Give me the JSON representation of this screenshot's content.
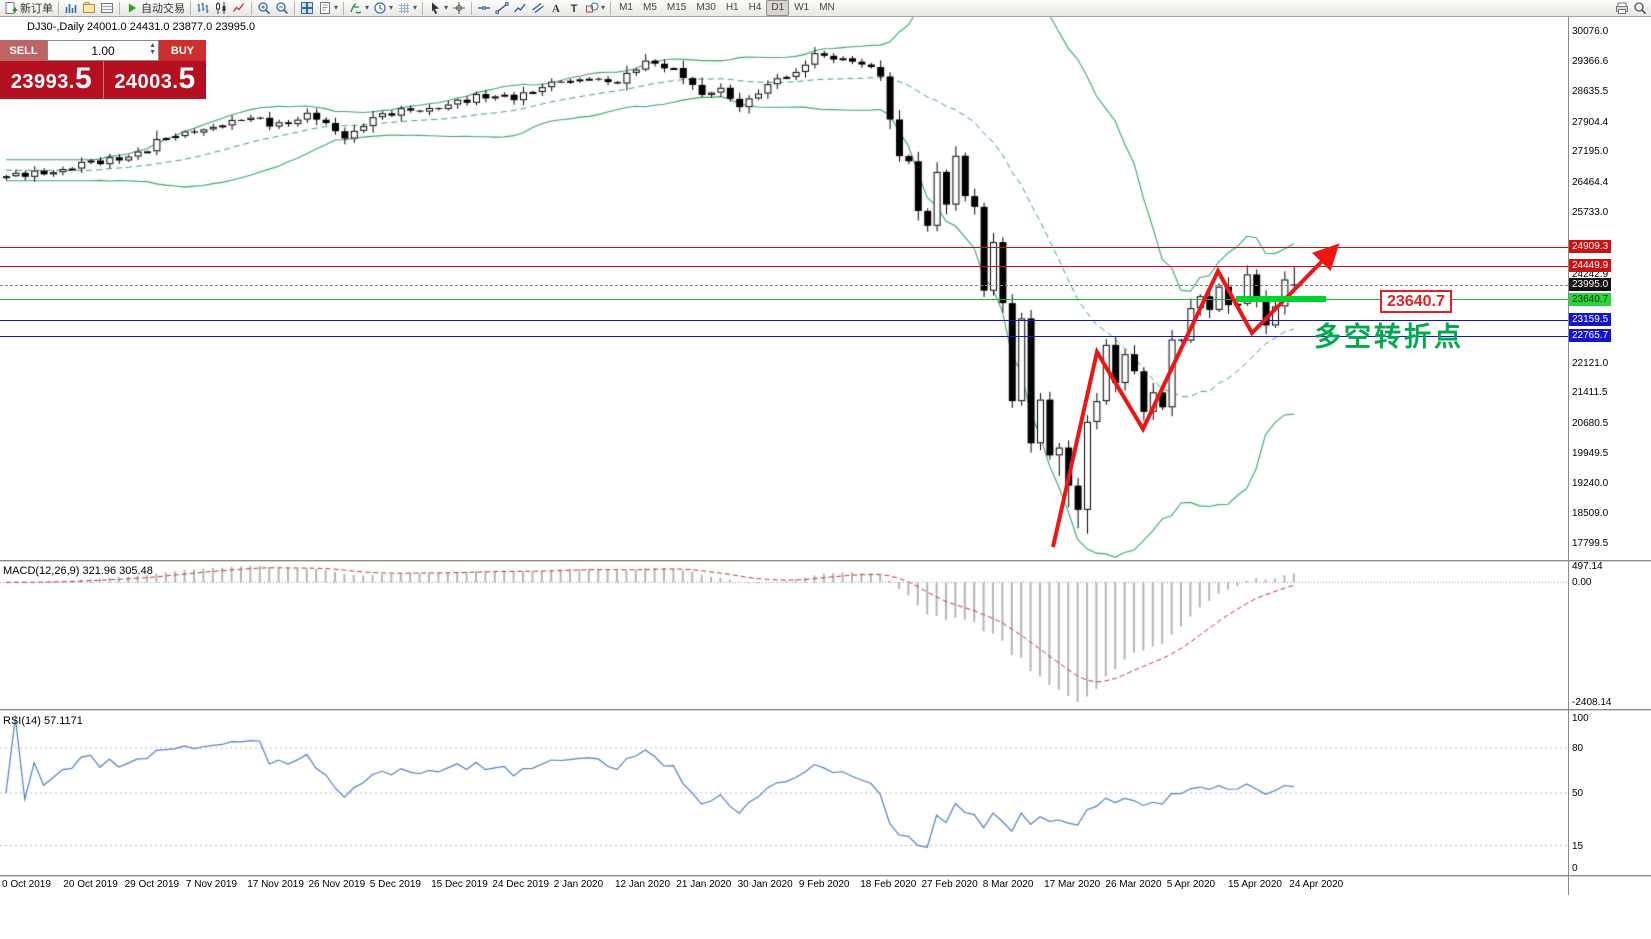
{
  "toolbar": {
    "groups": [
      {
        "items": [
          {
            "icon": "new-order",
            "label": "新订单"
          }
        ]
      },
      {
        "items": [
          {
            "icon": "market-watch"
          },
          {
            "icon": "navigator"
          },
          {
            "icon": "terminal"
          }
        ]
      },
      {
        "items": [
          {
            "icon": "autotrading",
            "label": "自动交易"
          }
        ]
      },
      {
        "items": [
          {
            "icon": "bars-chart"
          },
          {
            "icon": "candles-chart"
          },
          {
            "icon": "line-chart"
          }
        ]
      },
      {
        "items": [
          {
            "icon": "zoom-in"
          },
          {
            "icon": "zoom-out"
          }
        ]
      },
      {
        "items": [
          {
            "icon": "tile-windows"
          },
          {
            "icon": "templates",
            "dropdown": true
          }
        ]
      },
      {
        "items": [
          {
            "icon": "indicators",
            "dropdown": true
          },
          {
            "icon": "periods",
            "dropdown": true
          },
          {
            "icon": "grid",
            "dropdown": true
          }
        ]
      },
      {
        "items": [
          {
            "icon": "cursor",
            "dropdown": true
          },
          {
            "icon": "crosshair"
          }
        ]
      },
      {
        "items": [
          {
            "icon": "hline"
          },
          {
            "icon": "trendline"
          },
          {
            "icon": "polyline"
          },
          {
            "icon": "channel"
          },
          {
            "icon": "text"
          },
          {
            "icon": "label"
          },
          {
            "icon": "shapes",
            "dropdown": true
          }
        ]
      },
      {
        "items": [
          {
            "tf": "M1"
          },
          {
            "tf": "M5"
          },
          {
            "tf": "M15"
          },
          {
            "tf": "M30"
          },
          {
            "tf": "H1"
          },
          {
            "tf": "H4"
          },
          {
            "tf": "D1",
            "active": true
          },
          {
            "tf": "W1"
          },
          {
            "tf": "MN"
          }
        ]
      }
    ],
    "right_icons": [
      "print",
      "search"
    ]
  },
  "chart": {
    "ohlc_title": "DJ30-,Daily 24001.0 24431.0 23877.0 23995.0"
  },
  "trade_panel": {
    "sell_label": "SELL",
    "buy_label": "BUY",
    "volume": "1.00",
    "sell_price_main": "23993.",
    "sell_price_big": "5",
    "buy_price_main": "24003.",
    "buy_price_big": "5"
  },
  "price_axis": {
    "plain_labels": [
      "30076.0",
      "29366.6",
      "28635.5",
      "27904.4",
      "27195.0",
      "26464.4",
      "25733.0",
      "24242.9",
      "22121.0",
      "21411.5",
      "20680.5",
      "19949.5",
      "19240.0",
      "18509.0",
      "17799.5"
    ],
    "tags": [
      {
        "text": "24909.3",
        "price": 24909.3,
        "bg": "#cc1111",
        "fg": "#ffffff"
      },
      {
        "text": "24449.9",
        "price": 24449.9,
        "bg": "#cc1111",
        "fg": "#ffffff"
      },
      {
        "text": "23995.0",
        "price": 23995.0,
        "bg": "#111111",
        "fg": "#ffffff"
      },
      {
        "text": "23640.7",
        "price": 23640.7,
        "bg": "#2fd13d",
        "fg": "#063b06"
      },
      {
        "text": "23159.5",
        "price": 23159.5,
        "bg": "#1414c8",
        "fg": "#ffffff"
      },
      {
        "text": "22765.7",
        "price": 22765.7,
        "bg": "#1414c8",
        "fg": "#ffffff"
      }
    ]
  },
  "levels": [
    {
      "price": 24909.3,
      "color": "#cc1111",
      "style": "solid"
    },
    {
      "price": 24449.9,
      "color": "#cc1111",
      "style": "solid"
    },
    {
      "price": 23995.0,
      "color": "#808080",
      "style": "dashed"
    },
    {
      "price": 23640.7,
      "color": "#19b52f",
      "style": "solid"
    },
    {
      "price": 23159.5,
      "color": "#1414c8",
      "style": "solid"
    },
    {
      "price": 22765.7,
      "color": "#1414c8",
      "style": "solid"
    }
  ],
  "annotations": {
    "price_label": "23640.7",
    "turning_point": "多空转折点"
  },
  "macd": {
    "label": "MACD(12,26,9) 321.96 305.48",
    "axis_labels": [
      "497.14",
      "0.00",
      "-2408.14"
    ]
  },
  "rsi": {
    "label": "RSI(14) 57.1171",
    "axis_labels": [
      "100",
      "80",
      "50",
      "15",
      "0"
    ],
    "axis_values": [
      100,
      80,
      50,
      15,
      0
    ],
    "levels": [
      80,
      50,
      15
    ]
  },
  "time_axis": {
    "labels": [
      "0 Oct 2019",
      "20 Oct 2019",
      "29 Oct 2019",
      "7 Nov 2019",
      "17 Nov 2019",
      "26 Nov 2019",
      "5 Dec 2019",
      "15 Dec 2019",
      "24 Dec 2019",
      "2 Jan 2020",
      "12 Jan 2020",
      "21 Jan 2020",
      "30 Jan 2020",
      "9 Feb 2020",
      "18 Feb 2020",
      "27 Feb 2020",
      "8 Mar 2020",
      "17 Mar 2020",
      "26 Mar 2020",
      "5 Apr 2020",
      "15 Apr 2020",
      "24 Apr 2020"
    ]
  },
  "chart_data": [
    {
      "type": "candlestick",
      "symbol": "DJ30-",
      "period": "Daily",
      "current_ohlc": {
        "open": 24001.0,
        "high": 24431.0,
        "low": 23877.0,
        "close": 23995.0
      },
      "y_axis_visible_range": [
        17799.5,
        30076.0
      ],
      "x_axis_visible_range": [
        "0 Oct 2019",
        "24 Apr 2020"
      ],
      "indicators": [
        {
          "name": "Bollinger Bands",
          "period": 20,
          "deviation": 2
        }
      ],
      "horizontal_levels": [
        24909.3,
        24449.9,
        23995.0,
        23640.7,
        23159.5,
        22765.7
      ],
      "close_keypoints": [
        [
          0,
          26600
        ],
        [
          6,
          26770
        ],
        [
          13,
          27071
        ],
        [
          19,
          27674
        ],
        [
          23,
          27820
        ],
        [
          26,
          28005
        ],
        [
          30,
          27850
        ],
        [
          32,
          28121
        ],
        [
          36,
          27502
        ],
        [
          39,
          28015
        ],
        [
          45,
          28235
        ],
        [
          52,
          28515
        ],
        [
          56,
          28621
        ],
        [
          58,
          28868
        ],
        [
          62,
          28939
        ],
        [
          65,
          28823
        ],
        [
          68,
          29373
        ],
        [
          71,
          29196
        ],
        [
          74,
          28550
        ],
        [
          76,
          28722
        ],
        [
          78,
          28256
        ],
        [
          81,
          28807
        ],
        [
          84,
          29102
        ],
        [
          86,
          29551
        ],
        [
          88,
          29398
        ],
        [
          90,
          29348
        ],
        [
          92,
          29219
        ],
        [
          93,
          28992
        ],
        [
          94,
          27960
        ],
        [
          95,
          27081
        ],
        [
          96,
          26957
        ],
        [
          97,
          25766
        ],
        [
          98,
          25409
        ],
        [
          99,
          26703
        ],
        [
          100,
          25917
        ],
        [
          101,
          27090
        ],
        [
          102,
          26121
        ],
        [
          103,
          25864
        ],
        [
          104,
          23851
        ],
        [
          105,
          25018
        ],
        [
          106,
          23553
        ],
        [
          107,
          21200
        ],
        [
          108,
          23185
        ],
        [
          109,
          20188
        ],
        [
          110,
          21237
        ],
        [
          111,
          19898
        ],
        [
          112,
          20087
        ],
        [
          113,
          19173
        ],
        [
          114,
          18591
        ],
        [
          115,
          20704
        ],
        [
          116,
          21200
        ],
        [
          117,
          22552
        ],
        [
          118,
          21636
        ],
        [
          119,
          22327
        ],
        [
          120,
          21917
        ],
        [
          121,
          20943
        ],
        [
          122,
          21413
        ],
        [
          123,
          21052
        ],
        [
          124,
          22679
        ],
        [
          125,
          22653
        ],
        [
          126,
          23433
        ],
        [
          127,
          23719
        ],
        [
          128,
          23390
        ],
        [
          129,
          23949
        ],
        [
          130,
          23504
        ],
        [
          131,
          23537
        ],
        [
          132,
          24242
        ],
        [
          133,
          23650
        ],
        [
          134,
          23018
        ],
        [
          135,
          23475
        ],
        [
          136,
          24120
        ],
        [
          137,
          23995
        ]
      ]
    },
    {
      "type": "bar",
      "name": "MACD",
      "params": "12,26,9",
      "current_values": [
        321.96,
        305.48
      ],
      "axis_max": 497.14,
      "axis_min": -2408.14
    },
    {
      "type": "line",
      "name": "RSI",
      "period": 14,
      "current_value": 57.1171,
      "levels": [
        80,
        50,
        15
      ],
      "axis_range": [
        0,
        100
      ]
    }
  ]
}
